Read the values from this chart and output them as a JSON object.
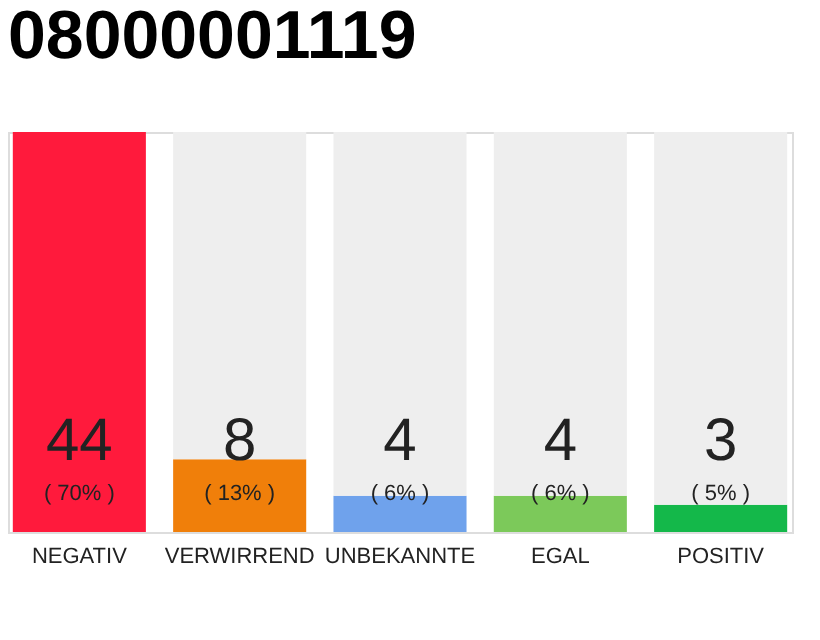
{
  "chart_data": {
    "type": "bar",
    "title": "08000001119",
    "categories": [
      "NEGATIV",
      "VERWIRREND",
      "UNBEKANNTE",
      "EGAL",
      "POSITIV"
    ],
    "stacked": true,
    "series": [
      {
        "colors": [
          "#ff1a3c",
          "#f07f0a",
          "#6fa2ec",
          "#7cc95a",
          "#14b84a"
        ],
        "values": [
          44,
          8,
          4,
          4,
          3
        ],
        "value_labels": [
          "44",
          "8",
          "4",
          "4",
          "3"
        ]
      },
      {
        "color": "#eeeeee",
        "values": [
          0,
          36,
          40,
          40,
          41
        ]
      }
    ],
    "annotations": [
      "( 70% )",
      "( 13% )",
      "( 6% )",
      "( 6% )",
      "( 5% )"
    ]
  }
}
